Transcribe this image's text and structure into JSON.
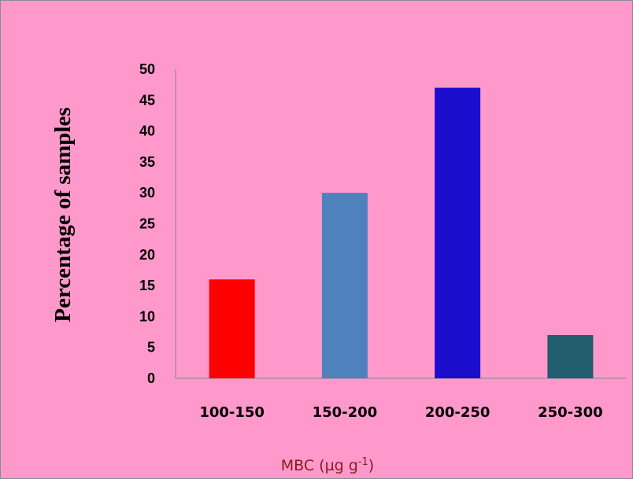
{
  "chart_data": {
    "type": "bar",
    "categories": [
      "100-150",
      "150-200",
      "200-250",
      "250-300"
    ],
    "values": [
      16,
      30,
      47,
      7
    ],
    "bar_colors": [
      "#FF0000",
      "#4F81BD",
      "#1A0DCC",
      "#215E6E"
    ],
    "ylabel": "Percentage of samples",
    "xlabel_base": "MBC (µg g",
    "xlabel_sup": "-1",
    "xlabel_end": ")",
    "ylim": [
      0,
      50
    ],
    "yticks": [
      "0",
      "5",
      "10",
      "15",
      "20",
      "25",
      "30",
      "35",
      "40",
      "45",
      "50"
    ],
    "grid": false,
    "legend": "none",
    "background_color": "#FF99CC",
    "x_title_color": "#8B1A1A"
  }
}
